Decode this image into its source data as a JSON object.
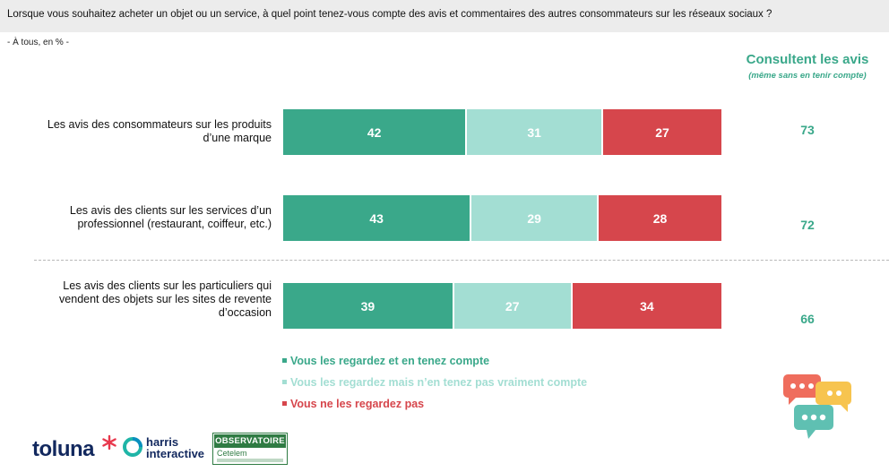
{
  "header": {
    "question": "Lorsque vous souhaitez acheter un objet ou un service, à quel point tenez-vous compte des avis et commentaires des autres consommateurs sur les réseaux sociaux ?",
    "subtitle": "- À tous, en % -"
  },
  "side_column": {
    "title": "Consultent les avis",
    "subtitle": "(même sans en tenir compte)"
  },
  "colors": {
    "regardez_tenez": "#3aa88a",
    "regardez_pas_vraiment": "#a3ded3",
    "ne_regardez_pas": "#d6464c",
    "accent_text": "#3aa88a"
  },
  "chart_data": {
    "type": "bar",
    "orientation": "horizontal",
    "stacked": true,
    "categories": [
      "Les avis des consommateurs sur les produits d’une marque",
      "Les avis des clients sur les services d’un professionnel (restaurant, coiffeur, etc.)",
      "Les avis des clients sur les particuliers qui vendent des objets sur les sites de revente d’occasion"
    ],
    "category_lines": [
      [
        "Les avis des consommateurs sur les produits",
        "d’une marque"
      ],
      [
        "Les avis des clients sur les services d’un",
        "professionnel (restaurant, coiffeur, etc.)"
      ],
      [
        "Les avis des clients sur les particuliers qui",
        "vendent des objets sur les sites de revente",
        "d’occasion"
      ]
    ],
    "series": [
      {
        "name": "Vous les regardez et en tenez compte",
        "values": [
          42,
          43,
          39
        ]
      },
      {
        "name": "Vous les regardez mais n’en tenez pas vraiment compte",
        "values": [
          31,
          29,
          27
        ]
      },
      {
        "name": "Vous ne les regardez pas",
        "values": [
          27,
          28,
          34
        ]
      }
    ],
    "consultent_les_avis": [
      73,
      72,
      66
    ],
    "xlim": [
      0,
      100
    ],
    "legend_position": "bottom",
    "grid": false
  },
  "logos": {
    "toluna": "toluna",
    "harris_line1": "harris",
    "harris_line2": "interactive",
    "observatoire_top": "OBSERVATOIRE",
    "observatoire_bottom": "Cetelem"
  }
}
